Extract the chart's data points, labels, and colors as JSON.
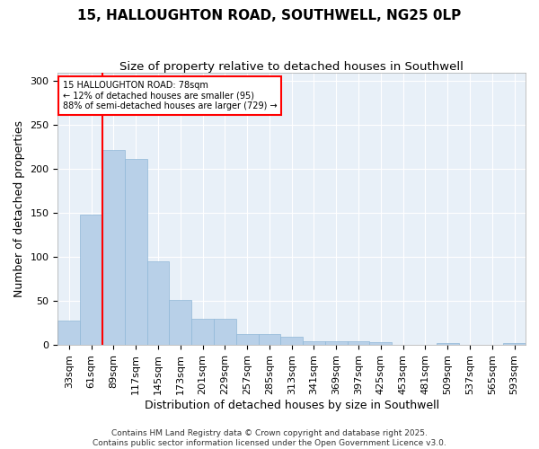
{
  "title": "15, HALLOUGHTON ROAD, SOUTHWELL, NG25 0LP",
  "subtitle": "Size of property relative to detached houses in Southwell",
  "xlabel": "Distribution of detached houses by size in Southwell",
  "ylabel": "Number of detached properties",
  "categories": [
    "33sqm",
    "61sqm",
    "89sqm",
    "117sqm",
    "145sqm",
    "173sqm",
    "201sqm",
    "229sqm",
    "257sqm",
    "285sqm",
    "313sqm",
    "341sqm",
    "369sqm",
    "397sqm",
    "425sqm",
    "453sqm",
    "481sqm",
    "509sqm",
    "537sqm",
    "565sqm",
    "593sqm"
  ],
  "values": [
    28,
    148,
    222,
    211,
    95,
    51,
    30,
    30,
    12,
    12,
    9,
    4,
    4,
    4,
    3,
    0,
    0,
    2,
    0,
    0,
    2
  ],
  "bar_color": "#b8d0e8",
  "bar_edge_color": "#90b8d8",
  "ylim": [
    0,
    310
  ],
  "yticks": [
    0,
    50,
    100,
    150,
    200,
    250,
    300
  ],
  "red_line_x": 1.5,
  "annotation_title": "15 HALLOUGHTON ROAD: 78sqm",
  "annotation_line1": "← 12% of detached houses are smaller (95)",
  "annotation_line2": "88% of semi-detached houses are larger (729) →",
  "footer1": "Contains HM Land Registry data © Crown copyright and database right 2025.",
  "footer2": "Contains public sector information licensed under the Open Government Licence v3.0.",
  "background_color": "#ffffff",
  "plot_background": "#e8f0f8",
  "grid_color": "#ffffff",
  "title_fontsize": 11,
  "subtitle_fontsize": 9.5,
  "axis_label_fontsize": 9,
  "tick_fontsize": 8,
  "footer_fontsize": 6.5
}
